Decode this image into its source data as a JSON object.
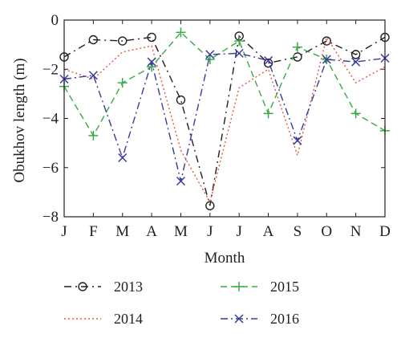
{
  "chart_data": {
    "type": "line",
    "title": "",
    "xlabel": "Month",
    "ylabel": "Obukhov length (m)",
    "categories": [
      "J",
      "F",
      "M",
      "A",
      "M",
      "J",
      "J",
      "A",
      "S",
      "O",
      "N",
      "D"
    ],
    "ylim": [
      -8,
      0
    ],
    "yticks": [
      0,
      -2,
      -4,
      -6,
      -8
    ],
    "grid": false,
    "legend_position": "bottom",
    "series": [
      {
        "name": "2013",
        "color": "#231f20",
        "line_style": "dash-dot-marker",
        "marker": "circle",
        "values": [
          -1.5,
          -0.8,
          -0.85,
          -0.7,
          -3.25,
          -7.55,
          -0.65,
          -1.75,
          -1.5,
          -0.85,
          -1.4,
          -0.7
        ]
      },
      {
        "name": "2014",
        "color": "#e8553a",
        "line_style": "dotted",
        "marker": "none",
        "values": [
          -2.0,
          -2.4,
          -1.3,
          -1.05,
          -5.3,
          -7.4,
          -2.75,
          -2.0,
          -5.5,
          -0.7,
          -2.55,
          -1.9
        ]
      },
      {
        "name": "2015",
        "color": "#3aa845",
        "line_style": "dashed",
        "marker": "plus",
        "values": [
          -2.7,
          -4.7,
          -2.55,
          -1.9,
          -0.5,
          -1.6,
          -0.85,
          -3.8,
          -1.1,
          -1.6,
          -3.8,
          -4.5
        ]
      },
      {
        "name": "2016",
        "color": "#3a3a9e",
        "line_style": "dash-dot",
        "marker": "x",
        "values": [
          -2.4,
          -2.25,
          -5.6,
          -1.7,
          -6.55,
          -1.4,
          -1.35,
          -1.65,
          -4.9,
          -1.6,
          -1.7,
          -1.55
        ]
      }
    ]
  }
}
